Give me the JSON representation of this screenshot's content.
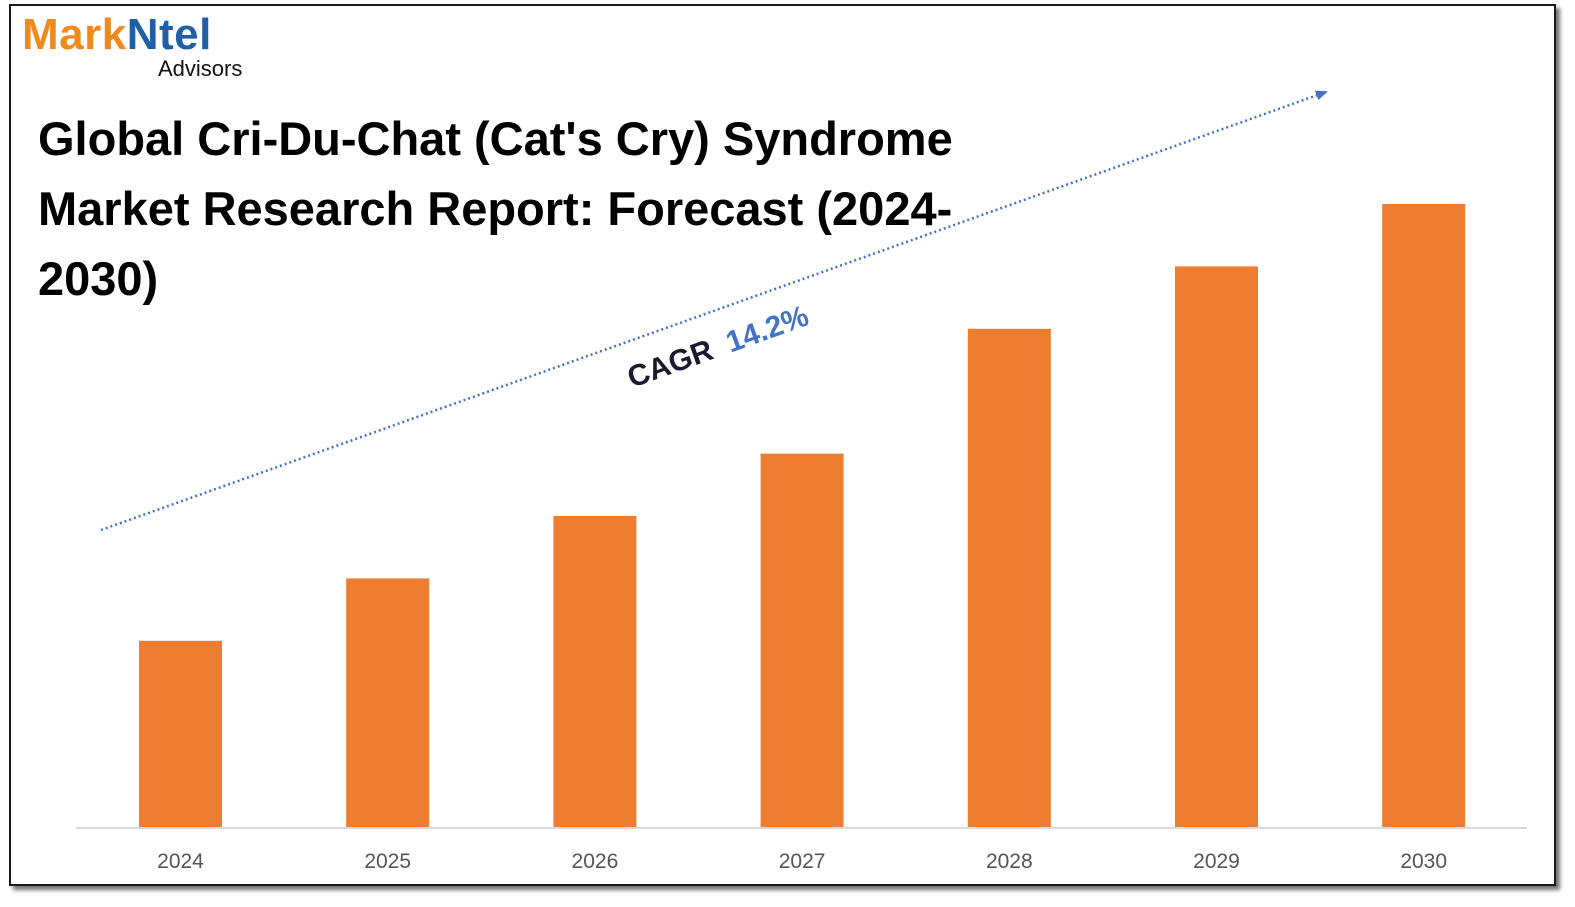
{
  "logo": {
    "mark": "Mark",
    "ntel": "Ntel",
    "sub": "Advisors"
  },
  "colors": {
    "bar": "#ed7d31",
    "trend": "#4472c4",
    "cagr_label": "#1a1a2e",
    "cagr_value": "#4472c4",
    "axis": "#d9d9d9"
  },
  "cagr": {
    "label": "CAGR",
    "value": "14.2%"
  },
  "chart_data": {
    "type": "bar",
    "title": "Global Cri-Du-Chat (Cat's Cry) Syndrome Market Research Report: Forecast (2024-2030)",
    "categories": [
      "2024",
      "2025",
      "2026",
      "2027",
      "2028",
      "2029",
      "2030"
    ],
    "values": [
      30,
      40,
      50,
      60,
      80,
      90,
      100
    ],
    "xlabel": "",
    "ylabel": "",
    "ylim": [
      0,
      100
    ],
    "grid": false,
    "legend": "none"
  }
}
